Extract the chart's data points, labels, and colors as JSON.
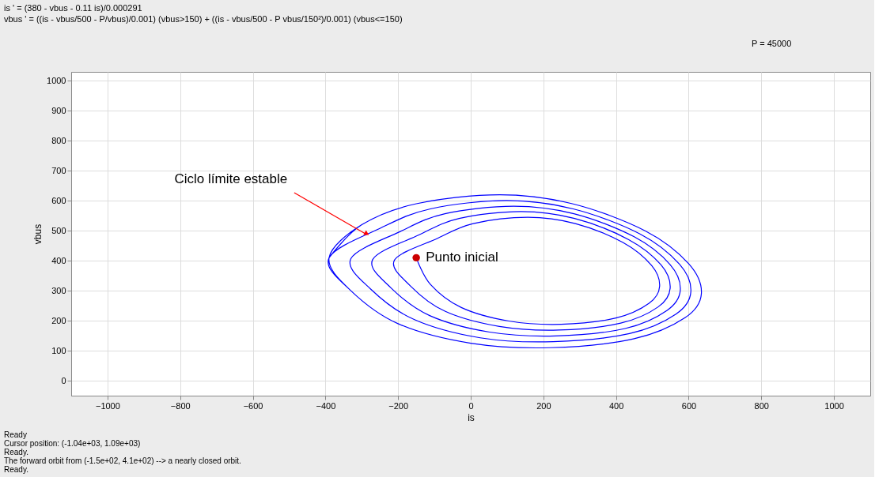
{
  "chart_data": {
    "type": "line",
    "title": "is ' = (380 - vbus - 0.11 is)/0.000291",
    "subtitle": "vbus ' = ((is - vbus/500 - P/vbus)/0.001) (vbus>150) + ((is - vbus/500 - P vbus/150²)/0.001) (vbus<=150)",
    "xlabel": "is",
    "ylabel": "vbus",
    "xlim": [
      -1100,
      1100
    ],
    "xticks": [
      -1000,
      -800,
      -600,
      -400,
      -200,
      0,
      200,
      400,
      600,
      800,
      1000
    ],
    "ylim": [
      -50,
      1030
    ],
    "yticks": [
      0,
      100,
      200,
      300,
      400,
      500,
      600,
      700,
      800,
      900,
      1000
    ],
    "grid": true,
    "line_style": "solid",
    "series": [
      {
        "color": "#0000ff",
        "marker": "none",
        "x": [
          -150,
          -111,
          -26,
          105,
          249,
          400,
          491,
          520,
          498,
          419,
          288,
          157,
          7,
          -91,
          -210,
          -166,
          -70,
          79,
          242,
          413,
          516,
          549,
          524,
          434,
          286,
          138,
          -32,
          -143,
          -270,
          -220,
          -113,
          52,
          234,
          425,
          540,
          577,
          549,
          450,
          284,
          118,
          -71,
          -195,
          -330,
          -275,
          -156,
          26,
          227,
          437,
          565,
          606,
          575,
          465,
          282,
          99,
          -111,
          -248,
          -390,
          -330,
          -200,
          0,
          220,
          450,
          590,
          635,
          600,
          480,
          280,
          80,
          -150,
          -300,
          -390,
          -330,
          -200,
          0,
          220,
          450,
          590,
          635,
          600,
          480,
          280,
          80,
          -150,
          -300,
          -390
        ],
        "values": [
          410,
          321,
          244,
          199,
          188,
          209,
          258,
          314,
          384,
          461,
          524,
          545,
          524,
          475,
          402,
          316,
          231,
          181,
          169,
          192,
          246,
          308,
          386,
          471,
          541,
          564,
          541,
          486,
          404,
          310,
          217,
          162,
          149,
          174,
          234,
          302,
          387,
          480,
          557,
          582,
          557,
          497,
          407,
          305,
          204,
          143,
          130,
          157,
          222,
          296,
          388,
          490,
          573,
          601,
          573,
          509,
          410,
          300,
          190,
          125,
          110,
          140,
          210,
          290,
          390,
          500,
          590,
          620,
          590,
          520,
          410,
          300,
          190,
          125,
          110,
          140,
          210,
          290,
          390,
          500,
          590,
          620,
          590,
          520,
          410
        ]
      },
      {
        "type": "scatter",
        "color": "#cc0000",
        "marker": "circle",
        "x": [
          -150
        ],
        "values": [
          410
        ]
      }
    ],
    "annotations": [
      {
        "text": "Ciclo límite estable",
        "x": -290,
        "y": 490
      },
      {
        "text": "Punto inicial",
        "x": -150,
        "y": 410
      },
      "P = 45000",
      "Ready",
      "Cursor position:  (-1.04e+03, 1.09e+03)",
      "Ready.",
      "The forward orbit from (-1.5e+02, 4.1e+02) --> a nearly closed orbit.",
      "Ready."
    ]
  }
}
